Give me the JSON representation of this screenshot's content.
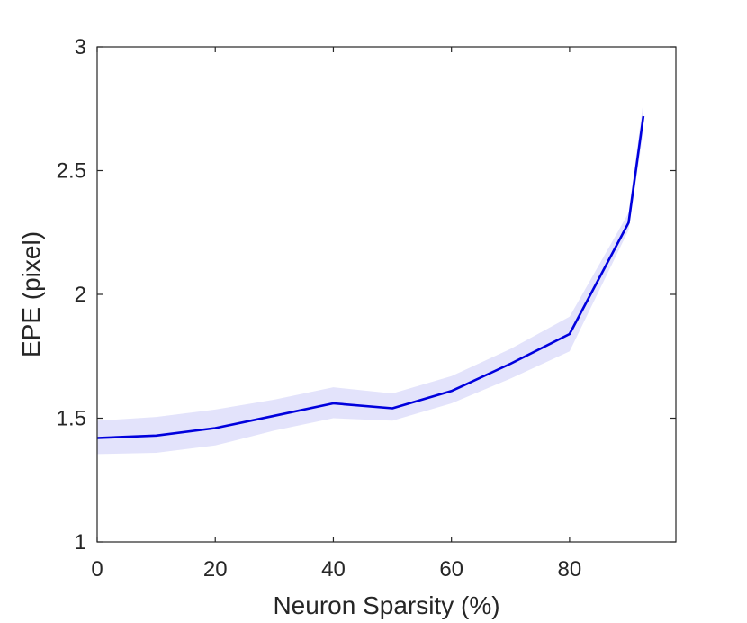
{
  "chart_data": {
    "type": "line",
    "title": "",
    "xlabel": "Neuron Sparsity (%)",
    "ylabel": "EPE (pixel)",
    "xlim": [
      0,
      98
    ],
    "ylim": [
      1,
      3
    ],
    "xticks": [
      0,
      20,
      40,
      60,
      80
    ],
    "yticks": [
      1,
      1.5,
      2,
      2.5,
      3
    ],
    "xtick_labels": [
      "0",
      "20",
      "40",
      "60",
      "80"
    ],
    "ytick_labels": [
      "1",
      "1.5",
      "2",
      "2.5",
      "3"
    ],
    "grid": false,
    "legend": "none",
    "series": [
      {
        "color": "#0000dd",
        "band_color": "#e3e3fb",
        "x": [
          0,
          10,
          20,
          30,
          40,
          50,
          60,
          70,
          80,
          90,
          92.5
        ],
        "y": [
          1.42,
          1.43,
          1.46,
          1.51,
          1.56,
          1.54,
          1.61,
          1.72,
          1.84,
          2.29,
          2.72
        ],
        "y_lower": [
          1.355,
          1.36,
          1.39,
          1.45,
          1.5,
          1.49,
          1.56,
          1.66,
          1.77,
          2.26,
          2.66
        ],
        "y_upper": [
          1.49,
          1.505,
          1.535,
          1.575,
          1.625,
          1.6,
          1.67,
          1.78,
          1.91,
          2.33,
          2.78
        ]
      }
    ]
  }
}
